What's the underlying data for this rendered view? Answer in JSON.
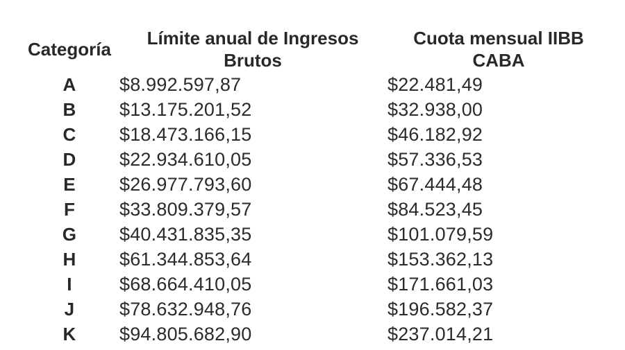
{
  "chart_data": {
    "type": "table",
    "columns": [
      "Categoría",
      "Límite anual de Ingresos Brutos",
      "Cuota mensual IIBB CABA"
    ],
    "rows": [
      [
        "A",
        "$8.992.597,87",
        "$22.481,49"
      ],
      [
        "B",
        "$13.175.201,52",
        "$32.938,00"
      ],
      [
        "C",
        "$18.473.166,15",
        "$46.182,92"
      ],
      [
        "D",
        "$22.934.610,05",
        "$57.336,53"
      ],
      [
        "E",
        "$26.977.793,60",
        "$67.444,48"
      ],
      [
        "F",
        "$33.809.379,57",
        "$84.523,45"
      ],
      [
        "G",
        "$40.431.835,35",
        "$101.079,59"
      ],
      [
        "H",
        "$61.344.853,64",
        "$153.362,13"
      ],
      [
        "I",
        "$68.664.410,05",
        "$171.661,03"
      ],
      [
        "J",
        "$78.632.948,76",
        "$196.582,37"
      ],
      [
        "K",
        "$94.805.682,90",
        "$237.014,21"
      ]
    ],
    "title": "",
    "layout": {
      "background": "#ffffff",
      "text_color": "#2b2b2b",
      "header_bold": true,
      "grid": false
    }
  }
}
